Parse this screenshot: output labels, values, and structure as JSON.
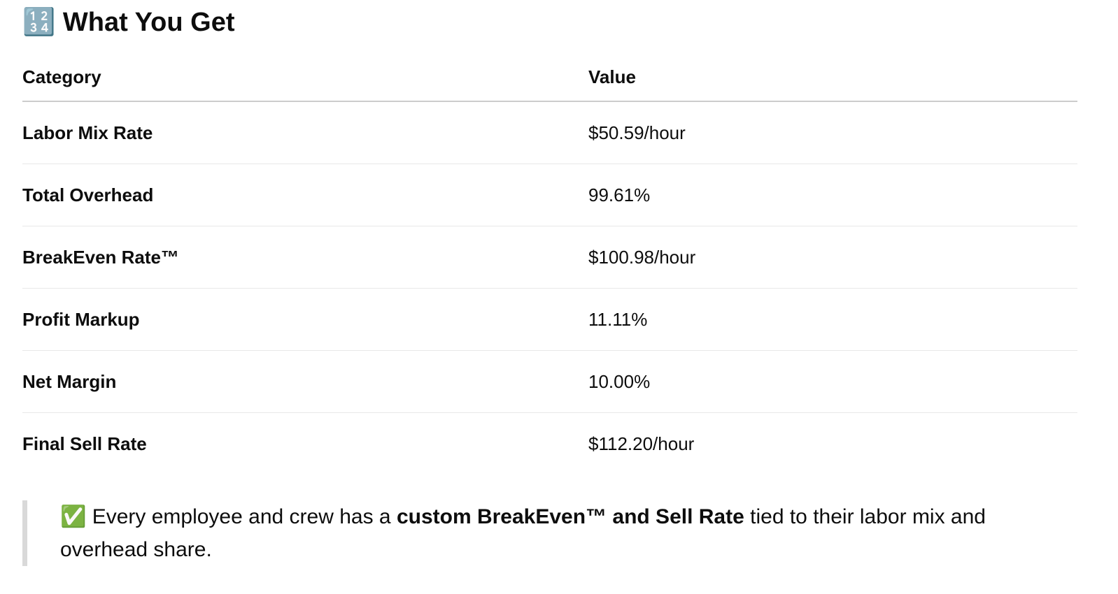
{
  "header": {
    "icon": "🔢",
    "title": "What You Get"
  },
  "table": {
    "columns": [
      "Category",
      "Value"
    ],
    "rows": [
      [
        "Labor Mix Rate",
        "$50.59/hour"
      ],
      [
        "Total Overhead",
        "99.61%"
      ],
      [
        "BreakEven Rate™",
        "$100.98/hour"
      ],
      [
        "Profit Markup",
        "11.11%"
      ],
      [
        "Net Margin",
        "10.00%"
      ],
      [
        "Final Sell Rate",
        "$112.20/hour"
      ]
    ]
  },
  "note": {
    "icon": "✅",
    "before": "Every employee and crew has a",
    "bold": "custom BreakEven™ and Sell Rate",
    "after": "tied to their labor mix and overhead share."
  }
}
